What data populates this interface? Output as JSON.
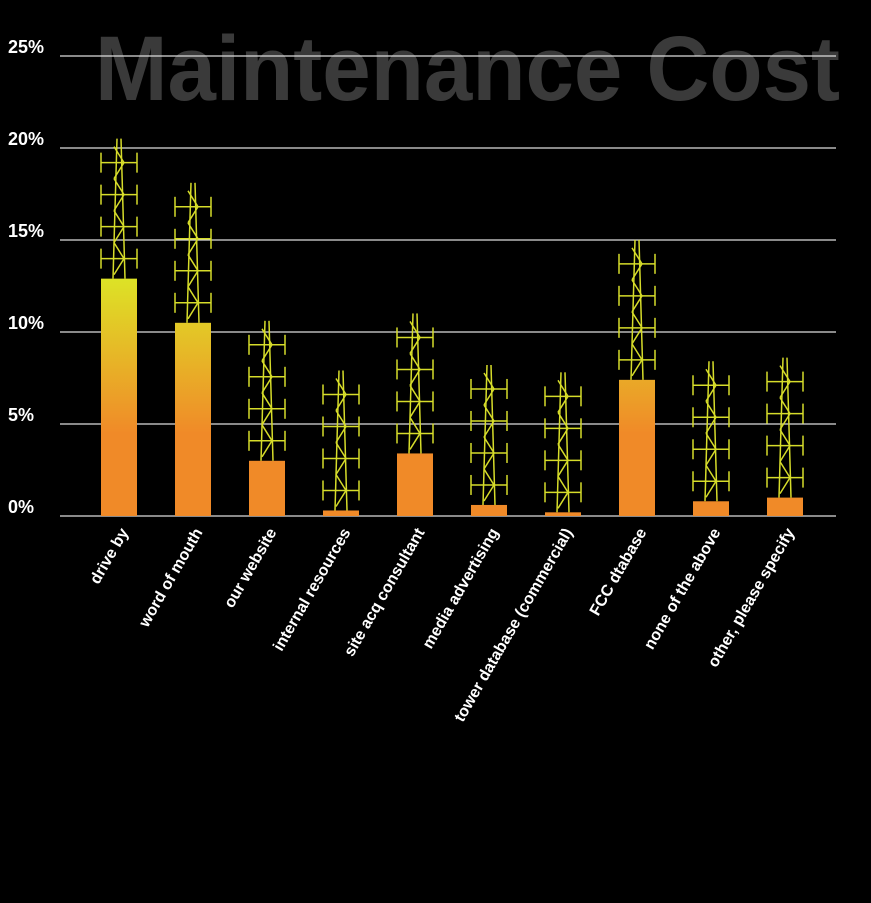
{
  "chart_data": {
    "type": "bar",
    "title": "Maintenance Cost",
    "categories": [
      "drive by",
      "word of mouth",
      "our website",
      "internal resources",
      "site acq consultant",
      "media advertising",
      "tower database (commercial)",
      "FCC dtabase",
      "none of the above",
      "other, please specify"
    ],
    "values": [
      12.9,
      10.5,
      3.0,
      0.3,
      3.4,
      0.6,
      0.2,
      7.4,
      0.8,
      1.0
    ],
    "colors": [
      "#dde226",
      "#f08a28"
    ],
    "ylim": [
      0,
      25
    ],
    "yticks": [
      {
        "value": 0,
        "label": "0%"
      },
      {
        "value": 5,
        "label": "5%"
      },
      {
        "value": 10,
        "label": "10%"
      },
      {
        "value": 15,
        "label": "15%"
      },
      {
        "value": 20,
        "label": "20%"
      },
      {
        "value": 25,
        "label": "25%"
      }
    ],
    "grid": true
  }
}
